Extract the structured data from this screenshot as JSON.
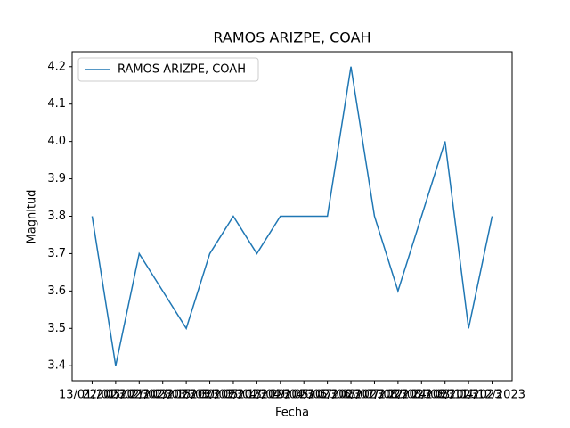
{
  "chart_data": {
    "type": "line",
    "title": "RAMOS ARIZPE, COAH",
    "xlabel": "Fecha",
    "ylabel": "Magnitud",
    "categories": [
      "13/01/2023",
      "22/01/2023",
      "05/02/2023",
      "21/02/2023",
      "03/03/2023",
      "15/03/2023",
      "30/03/2023",
      "05/04/2023",
      "13/04/2023",
      "29/04/2023",
      "05/05/2023",
      "07/06/2023",
      "08/07/2023",
      "07/08/2023",
      "22/08/2023",
      "24/08/2023",
      "08/11/2023",
      "04/12/2023"
    ],
    "series": [
      {
        "name": "RAMOS ARIZPE, COAH",
        "color": "#1f77b4",
        "values": [
          3.8,
          3.4,
          3.7,
          3.6,
          3.5,
          3.7,
          3.8,
          3.7,
          3.8,
          3.8,
          3.8,
          4.2,
          3.8,
          3.6,
          3.8,
          4.0,
          3.5,
          3.8
        ]
      }
    ],
    "ylim": [
      3.36,
      4.24
    ],
    "yticks": [
      3.4,
      3.5,
      3.6,
      3.7,
      3.8,
      3.9,
      {
        "value": 4,
        "label": "4.0"
      },
      4.1,
      4.2
    ],
    "grid": false,
    "legend": "upper left"
  }
}
